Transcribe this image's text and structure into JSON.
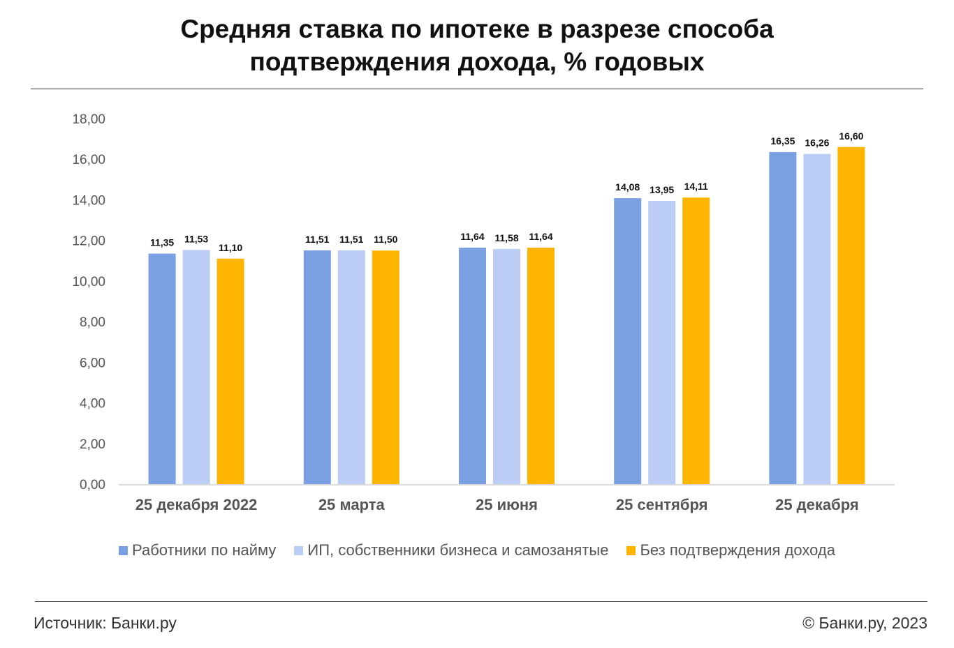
{
  "title_lines": [
    "Средняя ставка по ипотеке в разрезе способа",
    "подтверждения дохода, % годовых"
  ],
  "footer": {
    "source": "Источник: Банки.ру",
    "copyright": "© Банки.ру, 2023"
  },
  "colors": {
    "series1": "#7b9fe3",
    "series2": "#bccdf5",
    "series3": "#ffb400",
    "axis": "#d9d9d9"
  },
  "chart_data": {
    "type": "bar",
    "title": "Средняя ставка по ипотеке в разрезе способа подтверждения дохода, % годовых",
    "categories": [
      "25 декабря 2022",
      "25 марта",
      "25 июня",
      "25 сентября",
      "25 декабря"
    ],
    "series": [
      {
        "name": "Работники по найму",
        "values": [
          11.35,
          11.51,
          11.64,
          14.08,
          16.35
        ],
        "labels": [
          "11,35",
          "11,51",
          "11,64",
          "14,08",
          "16,35"
        ]
      },
      {
        "name": "ИП, собственники бизнеса и самозанятые",
        "values": [
          11.53,
          11.51,
          11.58,
          13.95,
          16.26
        ],
        "labels": [
          "11,53",
          "11,51",
          "11,58",
          "13,95",
          "16,26"
        ]
      },
      {
        "name": "Без подтверждения дохода",
        "values": [
          11.1,
          11.5,
          11.64,
          14.11,
          16.6
        ],
        "labels": [
          "11,10",
          "11,50",
          "11,64",
          "14,11",
          "16,60"
        ]
      }
    ],
    "yticks": [
      0,
      2,
      4,
      6,
      8,
      10,
      12,
      14,
      16,
      18
    ],
    "ytick_labels": [
      "0,00",
      "2,00",
      "4,00",
      "6,00",
      "8,00",
      "10,00",
      "12,00",
      "14,00",
      "16,00",
      "18,00"
    ],
    "ylim": [
      0,
      18
    ],
    "grid": false,
    "legend_position": "bottom"
  }
}
